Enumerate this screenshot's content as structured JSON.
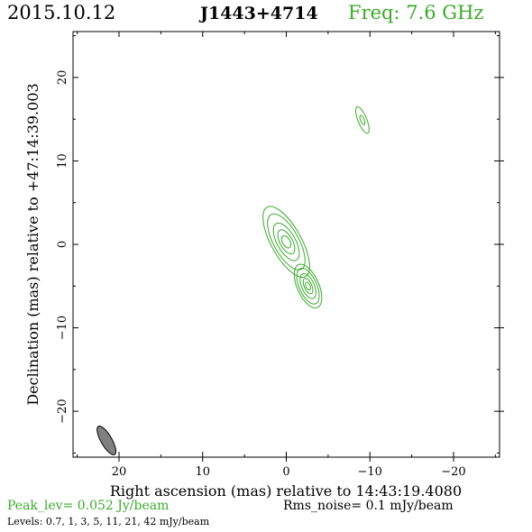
{
  "header": {
    "date": "2015.10.12",
    "source": "J1443+4714",
    "frequency": "Freq: 7.6 GHz"
  },
  "chart_data": {
    "type": "contour",
    "xlabel": "Right ascension (mas) relative to 14:43:19.4080",
    "ylabel": "Declination (mas) relative to +47:14:39.003",
    "xlim": [
      25.5,
      -25.5
    ],
    "ylim": [
      -25.5,
      25.5
    ],
    "x_ticks": [
      20,
      10,
      0,
      -10,
      -20
    ],
    "y_ticks": [
      20,
      10,
      0,
      -10,
      -20
    ],
    "contour_color": "#3aaa2a",
    "beam": {
      "x": 21.5,
      "y": -23.5,
      "major_mas": 2.6,
      "minor_mas": 1.0,
      "pa_deg": -30
    },
    "components": [
      {
        "x": 0.0,
        "y": 0.3,
        "major_mas": [
          1.6,
          3.2,
          5.0,
          7.5,
          9.5
        ],
        "minor_mas": [
          0.9,
          1.5,
          2.2,
          3.0,
          3.6
        ],
        "pa_deg": -29
      },
      {
        "x": -2.6,
        "y": -5.0,
        "major_mas": [
          1.0,
          2.0,
          3.2,
          4.6,
          5.6
        ],
        "minor_mas": [
          0.5,
          0.9,
          1.5,
          2.1,
          2.6
        ],
        "pa_deg": -24
      },
      {
        "x": -9.1,
        "y": 14.9,
        "major_mas": [
          1.2,
          3.4
        ],
        "minor_mas": [
          0.45,
          1.05
        ],
        "pa_deg": -22
      }
    ]
  },
  "footer": {
    "peak": "Peak_lev=   0.052 Jy/beam",
    "rms": "Rms_noise=   0.1 mJy/beam",
    "levels": "Levels: 0.7,    1,    3,    5,   11,   21,   42 mJy/beam"
  }
}
